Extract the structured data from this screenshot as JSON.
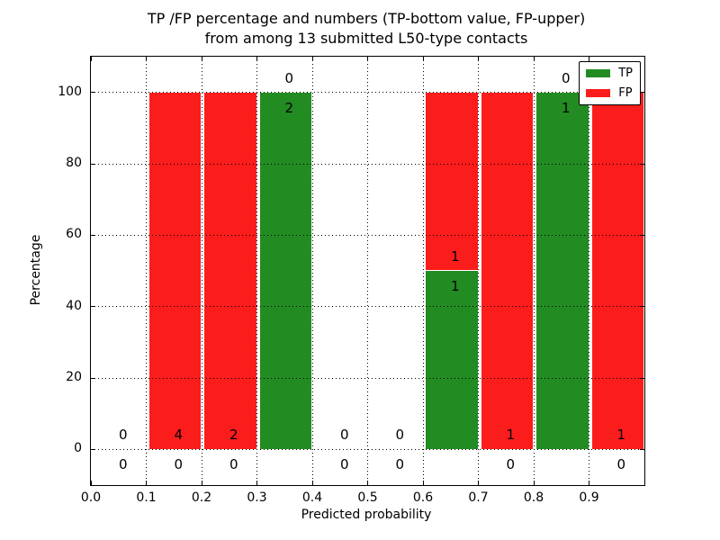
{
  "chart_data": {
    "type": "bar",
    "stacked": true,
    "title": "TP /FP percentage and numbers (TP-bottom value, FP-upper)\nfrom among 13 submitted L50-type contacts",
    "title_line1": "TP /FP percentage and numbers (TP-bottom value, FP-upper)",
    "title_line2": "from among 13 submitted L50-type contacts",
    "xlabel": "Predicted probability",
    "ylabel": "Percentage",
    "xlim": [
      0.0,
      1.0
    ],
    "ylim": [
      -10,
      110
    ],
    "xticks": [
      "0.0",
      "0.1",
      "0.2",
      "0.3",
      "0.4",
      "0.5",
      "0.6",
      "0.7",
      "0.8",
      "0.9"
    ],
    "yticks": [
      "0",
      "20",
      "40",
      "60",
      "80",
      "100"
    ],
    "grid": true,
    "grid_style": "dotted",
    "legend_position": "upper right",
    "colors": {
      "tp": "#228b22",
      "fp": "#fb1c1c",
      "axis": "#000000",
      "background": "#ffffff"
    },
    "series": [
      {
        "name": "TP",
        "color": "#228b22"
      },
      {
        "name": "FP",
        "color": "#fb1c1c"
      }
    ],
    "bins": [
      {
        "x0": 0.0,
        "x1": 0.1,
        "tp_pct": 0,
        "fp_pct": 0,
        "tp_count": 0,
        "fp_count": 0
      },
      {
        "x0": 0.1,
        "x1": 0.2,
        "tp_pct": 0,
        "fp_pct": 100,
        "tp_count": 0,
        "fp_count": 4
      },
      {
        "x0": 0.2,
        "x1": 0.3,
        "tp_pct": 0,
        "fp_pct": 100,
        "tp_count": 0,
        "fp_count": 2
      },
      {
        "x0": 0.3,
        "x1": 0.4,
        "tp_pct": 100,
        "fp_pct": 0,
        "tp_count": 2,
        "fp_count": 0
      },
      {
        "x0": 0.4,
        "x1": 0.5,
        "tp_pct": 0,
        "fp_pct": 0,
        "tp_count": 0,
        "fp_count": 0
      },
      {
        "x0": 0.5,
        "x1": 0.6,
        "tp_pct": 0,
        "fp_pct": 0,
        "tp_count": 0,
        "fp_count": 0
      },
      {
        "x0": 0.6,
        "x1": 0.7,
        "tp_pct": 50,
        "fp_pct": 50,
        "tp_count": 1,
        "fp_count": 1
      },
      {
        "x0": 0.7,
        "x1": 0.8,
        "tp_pct": 0,
        "fp_pct": 100,
        "tp_count": 0,
        "fp_count": 1
      },
      {
        "x0": 0.8,
        "x1": 0.9,
        "tp_pct": 100,
        "fp_pct": 0,
        "tp_count": 1,
        "fp_count": 0
      },
      {
        "x0": 0.9,
        "x1": 1.0,
        "tp_pct": 0,
        "fp_pct": 100,
        "tp_count": 0,
        "fp_count": 1
      }
    ]
  }
}
